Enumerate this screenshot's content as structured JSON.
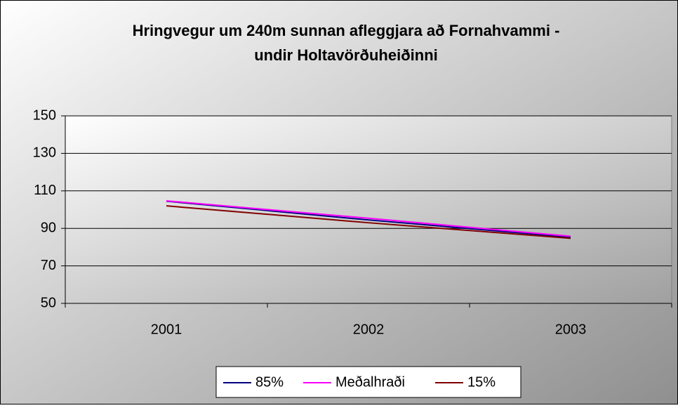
{
  "chart_data": {
    "type": "line",
    "title": [
      "Hringvegur um 240m sunnan afleggjara að Fornahvammi -",
      "undir Holtavörðuheiðinni"
    ],
    "categories": [
      "2001",
      "2002",
      "2003"
    ],
    "series": [
      {
        "name": "85%",
        "color": "#000080",
        "values": [
          104.5,
          94.5,
          85.3
        ]
      },
      {
        "name": "Meðalhraði",
        "color": "#ff00ff",
        "values": [
          104.7,
          95.4,
          85.8
        ]
      },
      {
        "name": "15%",
        "color": "#800000",
        "values": [
          102,
          93,
          84.7
        ]
      }
    ],
    "ylim": [
      50,
      150
    ],
    "yticks": [
      50,
      70,
      90,
      110,
      130,
      150
    ],
    "grid": true,
    "legend": "bottom"
  }
}
